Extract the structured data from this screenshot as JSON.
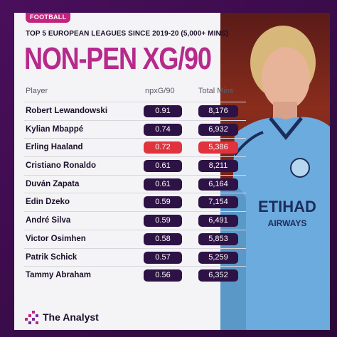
{
  "tag": "FOOTBALL",
  "subtitle": "TOP 5 EUROPEAN LEAGUES SINCE 2019-20 (5,000+ MINS)",
  "title": "NON-PEN XG/90",
  "columns": {
    "player": "Player",
    "xg": "npxG/90",
    "mins": "Total Mins"
  },
  "rows": [
    {
      "player": "Robert Lewandowski",
      "xg": "0.91",
      "mins": "8,176",
      "highlight": false
    },
    {
      "player": "Kylian Mbappé",
      "xg": "0.74",
      "mins": "6,932",
      "highlight": false
    },
    {
      "player": "Erling Haaland",
      "xg": "0.72",
      "mins": "5,386",
      "highlight": true
    },
    {
      "player": "Cristiano Ronaldo",
      "xg": "0.61",
      "mins": "8,211",
      "highlight": false
    },
    {
      "player": "Duván Zapata",
      "xg": "0.61",
      "mins": "6,164",
      "highlight": false
    },
    {
      "player": "Edin Dzeko",
      "xg": "0.59",
      "mins": "7,154",
      "highlight": false
    },
    {
      "player": "André Silva",
      "xg": "0.59",
      "mins": "6,491",
      "highlight": false
    },
    {
      "player": "Victor Osimhen",
      "xg": "0.58",
      "mins": "5,853",
      "highlight": false
    },
    {
      "player": "Patrik Schick",
      "xg": "0.57",
      "mins": "5,259",
      "highlight": false
    },
    {
      "player": "Tammy Abraham",
      "xg": "0.56",
      "mins": "6,352",
      "highlight": false
    }
  ],
  "footer": {
    "brand": "The Analyst",
    "logo_icon": "analyst-logo-icon"
  },
  "photo": {
    "shirt_sponsor": "ETIHAD",
    "shirt_sponsor_sub": "AIRWAYS",
    "icon": "player-photo"
  },
  "colors": {
    "accent": "#b62a8c",
    "tag": "#c2237e",
    "pill": "#2d1245",
    "highlight": "#e0333d",
    "frame": "#3a0d4a",
    "shirt": "#6cabdd"
  }
}
